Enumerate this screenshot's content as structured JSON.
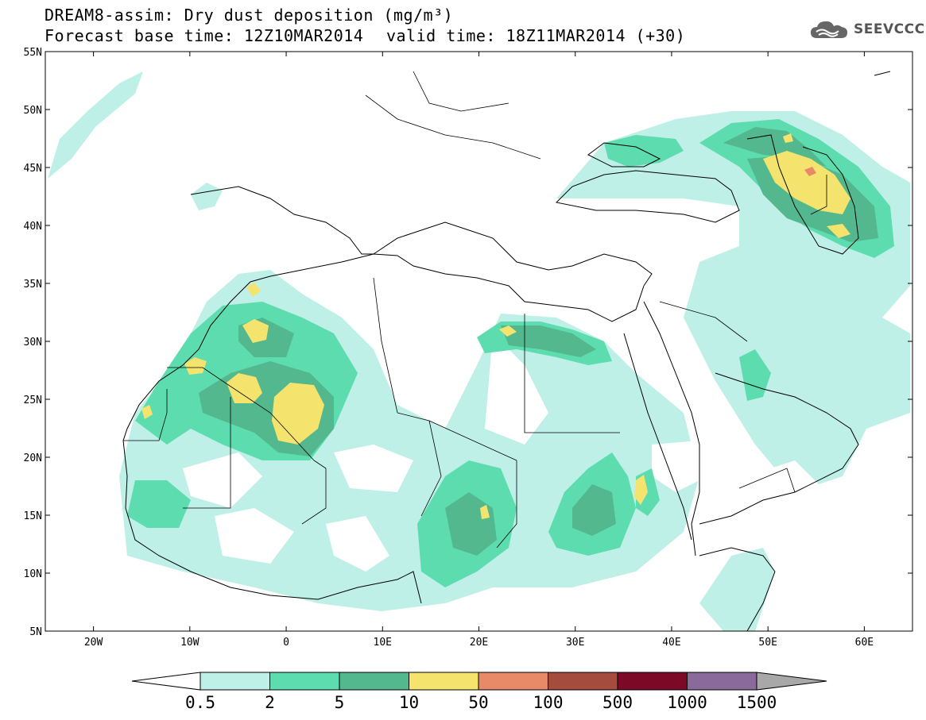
{
  "header": {
    "title": "DREAM8-assim: Dry dust deposition (mg/m³)",
    "base_time": "Forecast base time: 12Z10MAR2014",
    "valid_time": "valid time: 18Z11MAR2014 (+30)",
    "logo_text": "SEEVCCC"
  },
  "map": {
    "lon_range": [
      -25,
      65
    ],
    "lat_range": [
      5,
      55
    ],
    "lat_labels": [
      "55N",
      "50N",
      "45N",
      "40N",
      "35N",
      "30N",
      "25N",
      "20N",
      "15N",
      "10N",
      "5N"
    ],
    "lon_labels": [
      "20W",
      "10W",
      "0",
      "10E",
      "20E",
      "30E",
      "40E",
      "50E",
      "60E"
    ]
  },
  "colorbar": {
    "levels": [
      "0.5",
      "2",
      "5",
      "10",
      "50",
      "100",
      "500",
      "1000",
      "1500"
    ],
    "colors": [
      "#bff0e8",
      "#5ddcb0",
      "#54b88e",
      "#f4e46e",
      "#e88a68",
      "#a44c3e",
      "#7c0a26",
      "#8a6a9a"
    ],
    "under_color": "#ffffff",
    "over_color": "#a8a8a8"
  }
}
